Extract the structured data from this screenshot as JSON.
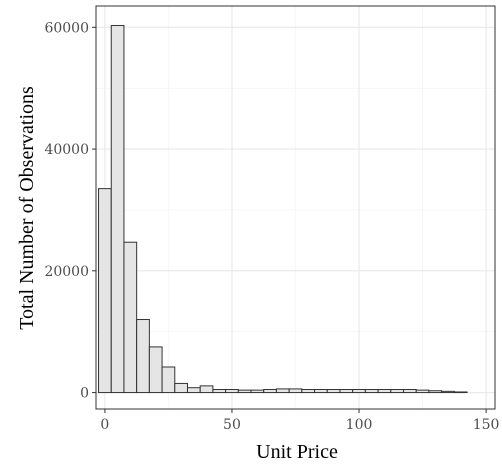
{
  "chart_data": {
    "type": "bar",
    "title": "",
    "xlabel": "Unit Price",
    "ylabel": "Total Number of Observations",
    "binwidth": 5,
    "xlim": [
      -3.5,
      153.5
    ],
    "ylim": [
      -2700,
      63500
    ],
    "x_ticks": [
      0,
      50,
      100,
      150
    ],
    "x_tick_labels": [
      "0",
      "50",
      "100",
      "150"
    ],
    "y_ticks": [
      0,
      20000,
      40000,
      60000
    ],
    "y_tick_labels": [
      "0",
      "20000",
      "40000",
      "60000"
    ],
    "grid": true,
    "bins": [
      {
        "x": 0,
        "count": 33500
      },
      {
        "x": 5,
        "count": 60300
      },
      {
        "x": 10,
        "count": 24700
      },
      {
        "x": 15,
        "count": 12000
      },
      {
        "x": 20,
        "count": 7500
      },
      {
        "x": 25,
        "count": 4200
      },
      {
        "x": 30,
        "count": 1500
      },
      {
        "x": 35,
        "count": 800
      },
      {
        "x": 40,
        "count": 1100
      },
      {
        "x": 45,
        "count": 500
      },
      {
        "x": 50,
        "count": 500
      },
      {
        "x": 55,
        "count": 400
      },
      {
        "x": 60,
        "count": 400
      },
      {
        "x": 65,
        "count": 500
      },
      {
        "x": 70,
        "count": 600
      },
      {
        "x": 75,
        "count": 600
      },
      {
        "x": 80,
        "count": 500
      },
      {
        "x": 85,
        "count": 500
      },
      {
        "x": 90,
        "count": 500
      },
      {
        "x": 95,
        "count": 500
      },
      {
        "x": 100,
        "count": 500
      },
      {
        "x": 105,
        "count": 500
      },
      {
        "x": 110,
        "count": 500
      },
      {
        "x": 115,
        "count": 500
      },
      {
        "x": 120,
        "count": 500
      },
      {
        "x": 125,
        "count": 400
      },
      {
        "x": 130,
        "count": 300
      },
      {
        "x": 135,
        "count": 200
      },
      {
        "x": 140,
        "count": 100
      }
    ],
    "colors": {
      "bar_fill": "#e5e5e5",
      "bar_stroke": "#333333",
      "panel_border": "#333333",
      "grid": "#e6e6e6"
    }
  }
}
